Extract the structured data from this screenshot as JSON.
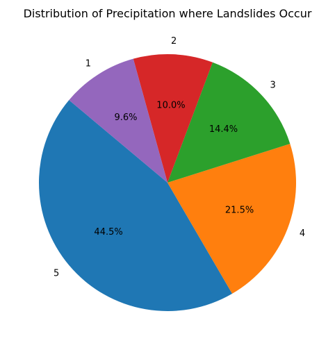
{
  "chart_data": {
    "type": "pie",
    "title": "Distribution of Precipitation where Landslides Occur",
    "labels": [
      "5",
      "4",
      "3",
      "2",
      "1"
    ],
    "values": [
      44.5,
      21.5,
      14.4,
      10.0,
      9.6
    ],
    "pct_labels": [
      "44.5%",
      "21.5%",
      "14.4%",
      "10.0%",
      "9.6%"
    ],
    "colors": [
      "#1f77b4",
      "#ff7f0e",
      "#2ca02c",
      "#d62728",
      "#9467bd"
    ],
    "start_angle_deg": 140,
    "direction": "counterclockwise"
  }
}
